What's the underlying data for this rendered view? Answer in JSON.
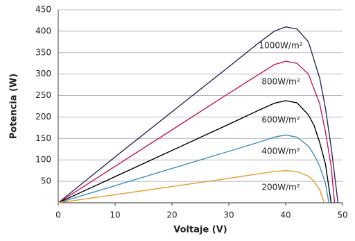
{
  "chart_data": {
    "type": "line",
    "xlabel": "Voltaje (V)",
    "ylabel": "Potencia (W)",
    "xlim": [
      0,
      50
    ],
    "ylim": [
      0,
      450
    ],
    "xticks": [
      0,
      10,
      20,
      30,
      40,
      50
    ],
    "yticks": [
      50,
      100,
      150,
      200,
      250,
      300,
      350,
      400,
      450
    ],
    "grid": true,
    "series": [
      {
        "name": "1000W/m²",
        "color": "#2b2a5e",
        "x": [
          0,
          10,
          20,
          30,
          35,
          38,
          40,
          42,
          44,
          46,
          47,
          48,
          49.2
        ],
        "values": [
          0,
          107,
          212,
          317,
          370,
          400,
          410,
          405,
          375,
          290,
          220,
          130,
          0
        ]
      },
      {
        "name": "800W/m²",
        "color": "#c2185b",
        "x": [
          0,
          10,
          20,
          30,
          35,
          38,
          40,
          42,
          44,
          46,
          47,
          48,
          48.6
        ],
        "values": [
          0,
          85,
          170,
          255,
          297,
          322,
          330,
          325,
          300,
          230,
          165,
          85,
          0
        ]
      },
      {
        "name": "600W/m²",
        "color": "#000000",
        "x": [
          0,
          10,
          20,
          30,
          35,
          38,
          40,
          42,
          44,
          45,
          46,
          47,
          48
        ],
        "values": [
          0,
          61,
          122,
          183,
          214,
          232,
          238,
          233,
          205,
          180,
          140,
          90,
          0
        ]
      },
      {
        "name": "400W/m²",
        "color": "#3a8fc4",
        "x": [
          0,
          10,
          20,
          30,
          35,
          38,
          40,
          42,
          44,
          45,
          46,
          47,
          47.6
        ],
        "values": [
          0,
          40,
          80,
          120,
          140,
          153,
          158,
          153,
          132,
          112,
          85,
          45,
          0
        ]
      },
      {
        "name": "200W/m²",
        "color": "#e39a2e",
        "x": [
          0,
          10,
          20,
          30,
          35,
          38,
          40,
          42,
          44,
          45,
          46,
          46.8
        ],
        "values": [
          0,
          19,
          38,
          57,
          67,
          73,
          75,
          73,
          62,
          50,
          30,
          0
        ]
      }
    ]
  }
}
